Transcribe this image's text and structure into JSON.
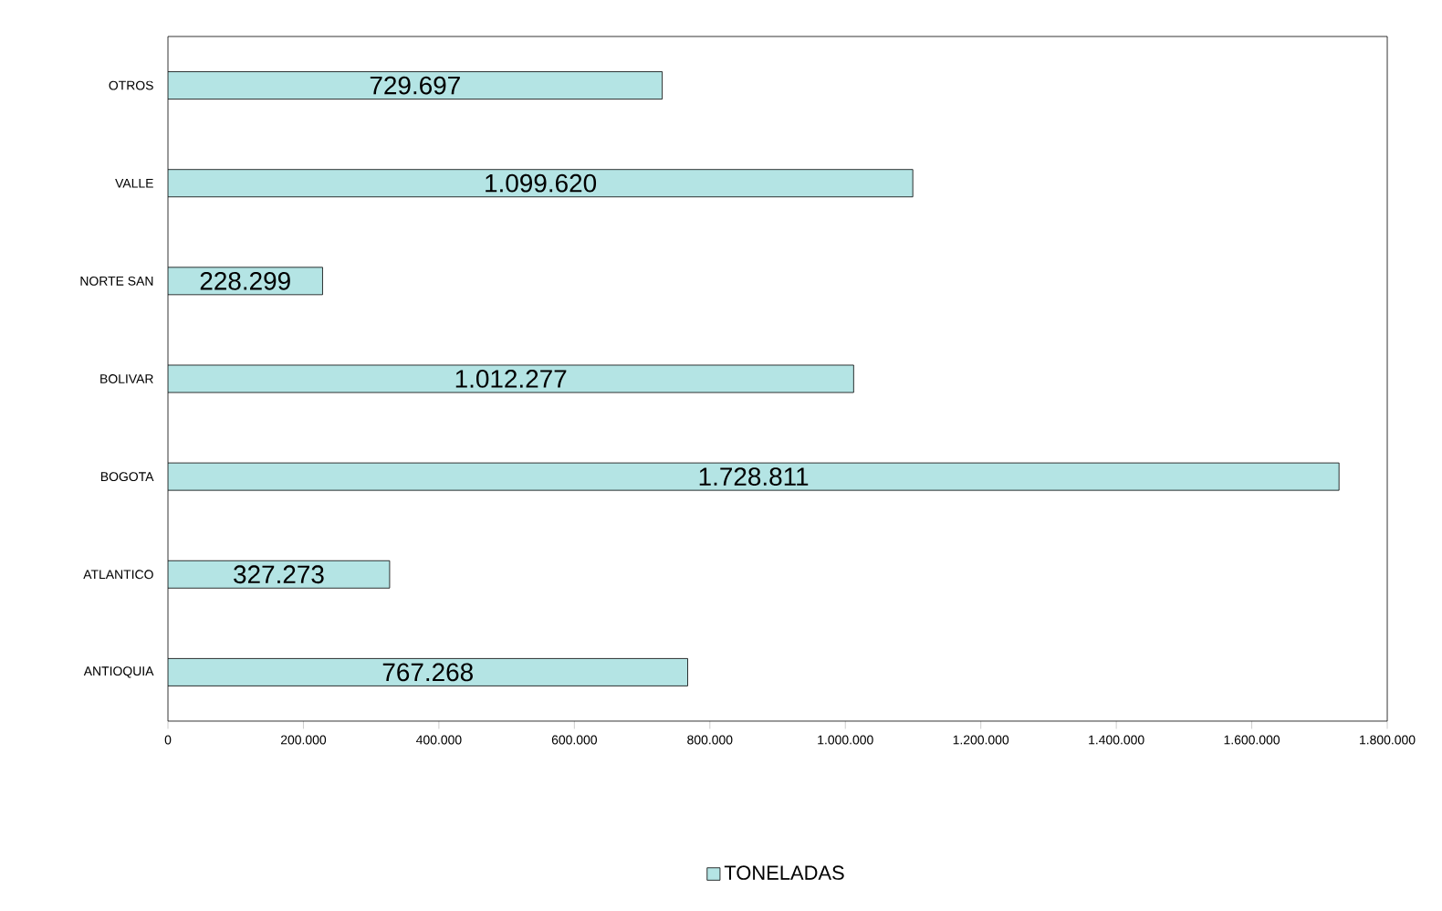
{
  "chart_data": {
    "type": "bar",
    "orientation": "horizontal",
    "categories": [
      "OTROS",
      "VALLE",
      "NORTE SAN",
      "BOLIVAR",
      "BOGOTA",
      "ATLANTICO",
      "ANTIOQUIA"
    ],
    "series": [
      {
        "name": "TONELADAS",
        "color": "#b4e4e4",
        "values": [
          729697,
          1099620,
          228299,
          1012277,
          1728811,
          327273,
          767268
        ],
        "value_labels": [
          "729.697",
          "1.099.620",
          "228.299",
          "1.012.277",
          "1.728.811",
          "327.273",
          "767.268"
        ]
      }
    ],
    "xlim": [
      0,
      1800000
    ],
    "xticks": [
      {
        "value": 0,
        "label": "0"
      },
      {
        "value": 200000,
        "label": "200.000"
      },
      {
        "value": 400000,
        "label": "400.000"
      },
      {
        "value": 600000,
        "label": "600.000"
      },
      {
        "value": 800000,
        "label": "800.000"
      },
      {
        "value": 1000000,
        "label": "1.000.000"
      },
      {
        "value": 1200000,
        "label": "1.200.000"
      },
      {
        "value": 1400000,
        "label": "1.400.000"
      },
      {
        "value": 1600000,
        "label": "1.600.000"
      },
      {
        "value": 1800000,
        "label": "1.800.000"
      }
    ],
    "legend": "bottom",
    "grid": false
  }
}
